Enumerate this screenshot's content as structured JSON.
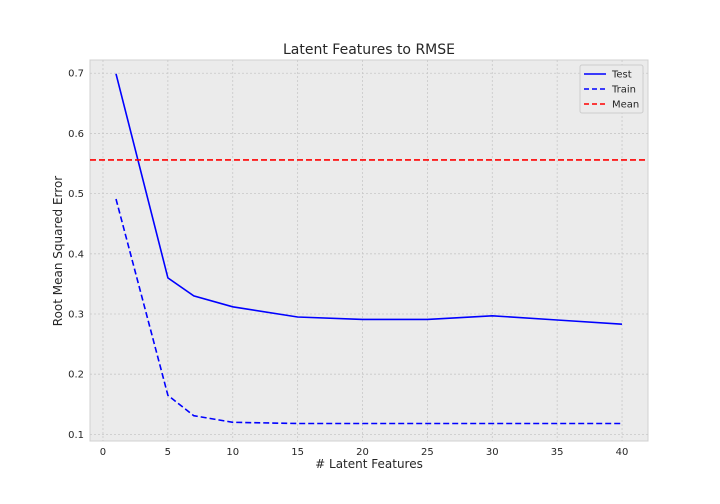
{
  "chart_data": {
    "type": "line",
    "title": "Latent Features to RMSE",
    "xlabel": "# Latent Features",
    "ylabel": "Root Mean Squared Error",
    "xlim": [
      -1,
      42
    ],
    "ylim": [
      0.089,
      0.722
    ],
    "xticks": [
      0,
      5,
      10,
      15,
      20,
      25,
      30,
      35,
      40
    ],
    "xtick_labels": [
      "0",
      "5",
      "10",
      "15",
      "20",
      "25",
      "30",
      "35",
      "40"
    ],
    "yticks": [
      0.1,
      0.2,
      0.3,
      0.4,
      0.5,
      0.6,
      0.7
    ],
    "ytick_labels": [
      "0.1",
      "0.2",
      "0.3",
      "0.4",
      "0.5",
      "0.6",
      "0.7"
    ],
    "grid": true,
    "legend_position": "top-right",
    "series": [
      {
        "name": "Test",
        "color": "#0000ff",
        "style": "solid",
        "x": [
          1,
          5,
          7,
          10,
          15,
          20,
          25,
          30,
          35,
          40
        ],
        "y": [
          0.699,
          0.36,
          0.33,
          0.312,
          0.295,
          0.291,
          0.291,
          0.297,
          0.29,
          0.283
        ]
      },
      {
        "name": "Train",
        "color": "#0000ff",
        "style": "dashed",
        "x": [
          1,
          5,
          7,
          10,
          15,
          20,
          25,
          30,
          35,
          40
        ],
        "y": [
          0.491,
          0.165,
          0.131,
          0.12,
          0.118,
          0.118,
          0.118,
          0.118,
          0.118,
          0.118
        ]
      },
      {
        "name": "Mean",
        "color": "#ff0000",
        "style": "dashed",
        "type": "hline",
        "y": 0.556
      }
    ]
  }
}
